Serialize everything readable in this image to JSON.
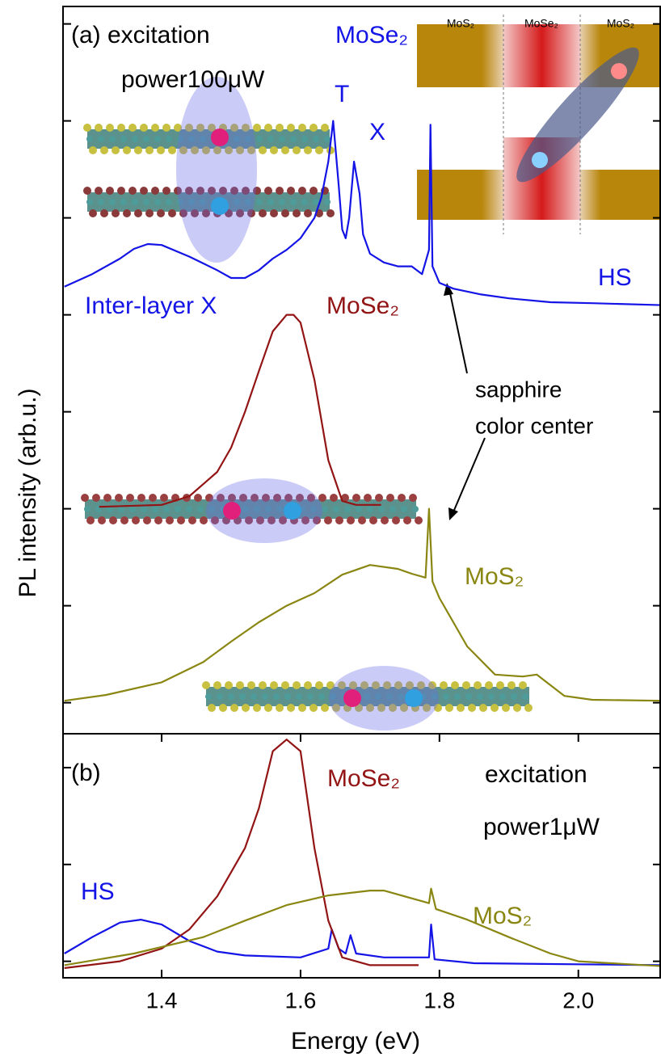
{
  "chart_data": [
    {
      "type": "line",
      "xlim": [
        1.258,
        2.119
      ],
      "ylim": [
        -0.32,
        7.18
      ],
      "yticks": [
        0,
        1,
        2,
        3,
        4,
        5,
        6,
        7
      ],
      "ytick_labels": false,
      "y_label": "PL intensity (arb.u.)",
      "annotations": [
        "(a) excitation",
        "power100μW",
        "MoSe₂",
        "T",
        "X",
        "Inter-layer X",
        "MoSe₂",
        "HS",
        "sapphire",
        "color center",
        "MoS₂",
        "MoS₂",
        "MoSe₂",
        "MoS₂"
      ],
      "series": [
        {
          "name": "HS",
          "color": "#1414e6",
          "x": [
            1.26,
            1.3,
            1.34,
            1.36,
            1.38,
            1.4,
            1.44,
            1.48,
            1.5,
            1.52,
            1.54,
            1.56,
            1.58,
            1.6,
            1.62,
            1.63,
            1.64,
            1.647,
            1.655,
            1.66,
            1.665,
            1.67,
            1.677,
            1.685,
            1.69,
            1.7,
            1.72,
            1.74,
            1.76,
            1.775,
            1.785,
            1.787,
            1.79,
            1.8,
            1.82,
            1.86,
            1.9,
            1.96,
            2.02,
            2.12
          ],
          "values": [
            4.29,
            4.42,
            4.58,
            4.68,
            4.73,
            4.72,
            4.6,
            4.46,
            4.38,
            4.38,
            4.46,
            4.58,
            4.67,
            4.79,
            5.0,
            5.21,
            5.58,
            6.0,
            5.33,
            4.88,
            4.79,
            5.0,
            5.58,
            5.25,
            4.83,
            4.63,
            4.54,
            4.5,
            4.5,
            4.42,
            4.67,
            5.96,
            4.5,
            4.33,
            4.27,
            4.21,
            4.17,
            4.13,
            4.12,
            4.1
          ]
        },
        {
          "name": "MoSe₂",
          "color": "#921414",
          "x": [
            1.31,
            1.4,
            1.44,
            1.48,
            1.5,
            1.52,
            1.54,
            1.56,
            1.58,
            1.59,
            1.6,
            1.62,
            1.64,
            1.66,
            1.68,
            1.716
          ],
          "values": [
            2.02,
            2.04,
            2.13,
            2.38,
            2.63,
            3.0,
            3.42,
            3.83,
            4.0,
            4.0,
            3.92,
            3.33,
            2.5,
            2.08,
            2.04,
            2.04
          ]
        },
        {
          "name": "MoS₂",
          "color": "#8a8612",
          "x": [
            1.26,
            1.32,
            1.4,
            1.46,
            1.5,
            1.54,
            1.58,
            1.62,
            1.66,
            1.7,
            1.74,
            1.76,
            1.78,
            1.785,
            1.79,
            1.8,
            1.84,
            1.88,
            1.92,
            1.94,
            1.96,
            1.98,
            2.02,
            2.12
          ],
          "values": [
            0.02,
            0.08,
            0.21,
            0.42,
            0.63,
            0.83,
            1.0,
            1.13,
            1.32,
            1.42,
            1.38,
            1.33,
            1.29,
            2.0,
            1.25,
            1.08,
            0.58,
            0.29,
            0.27,
            0.29,
            0.18,
            0.07,
            0.03,
            0.02
          ]
        }
      ]
    },
    {
      "type": "line",
      "xlim": [
        1.258,
        2.119
      ],
      "ylim": [
        -0.17,
        2.35
      ],
      "yticks": [
        0,
        1,
        2
      ],
      "ytick_labels": false,
      "xticks": [
        1.4,
        1.6,
        1.8,
        {
          "value": 2,
          "label": "2.0"
        }
      ],
      "x_label": "Energy (eV)",
      "annotations": [
        "(b)",
        "MoSe₂",
        "excitation",
        "power1μW",
        "HS",
        "MoS₂"
      ],
      "series": [
        {
          "name": "HS",
          "color": "#1414e6",
          "x": [
            1.26,
            1.3,
            1.34,
            1.37,
            1.4,
            1.44,
            1.48,
            1.52,
            1.6,
            1.64,
            1.645,
            1.655,
            1.665,
            1.672,
            1.68,
            1.72,
            1.785,
            1.788,
            1.793,
            1.85,
            2.12
          ],
          "values": [
            0.08,
            0.25,
            0.4,
            0.43,
            0.38,
            0.21,
            0.1,
            0.06,
            0.04,
            0.13,
            0.33,
            0.13,
            0.08,
            0.27,
            0.08,
            0.04,
            0.04,
            0.38,
            0.02,
            -0.02,
            -0.04
          ]
        },
        {
          "name": "MoSe₂",
          "color": "#921414",
          "x": [
            1.26,
            1.34,
            1.4,
            1.44,
            1.48,
            1.52,
            1.54,
            1.56,
            1.58,
            1.6,
            1.62,
            1.64,
            1.66,
            1.7,
            1.77
          ],
          "values": [
            -0.07,
            0,
            0.13,
            0.33,
            0.67,
            1.17,
            1.58,
            2.17,
            2.29,
            2.17,
            1.17,
            0.42,
            0.04,
            -0.04,
            -0.04
          ]
        },
        {
          "name": "MoS₂",
          "color": "#8a8612",
          "x": [
            1.26,
            1.36,
            1.46,
            1.52,
            1.58,
            1.64,
            1.7,
            1.72,
            1.76,
            1.785,
            1.788,
            1.795,
            1.84,
            1.9,
            1.96,
            2.0,
            2.12
          ],
          "values": [
            -0.04,
            0.08,
            0.25,
            0.42,
            0.58,
            0.68,
            0.73,
            0.73,
            0.65,
            0.6,
            0.75,
            0.54,
            0.43,
            0.25,
            0.08,
            0,
            -0.05
          ]
        }
      ]
    }
  ]
}
